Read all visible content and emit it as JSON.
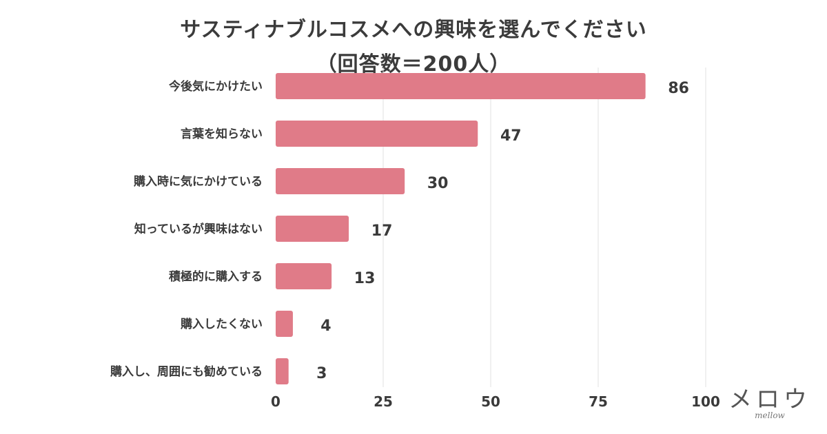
{
  "chart_data": {
    "type": "bar",
    "orientation": "horizontal",
    "title_line1": "サスティナブルコスメへの興味を選んでください",
    "title_line2": "（回答数＝200人）",
    "categories": [
      "今後気にかけたい",
      "言葉を知らない",
      "購入時に気にかけている",
      "知っているが興味はない",
      "積極的に購入する",
      "購入したくない",
      "購入し、周囲にも勧めている"
    ],
    "values": [
      86,
      47,
      30,
      17,
      13,
      4,
      3
    ],
    "xlim": [
      0,
      100
    ],
    "x_ticks": [
      0,
      25,
      50,
      75,
      100
    ],
    "grid": true,
    "bar_color": "#e07b88",
    "xlabel": "",
    "ylabel": ""
  },
  "logo": {
    "main": "メロウ",
    "sub": "mellow"
  }
}
